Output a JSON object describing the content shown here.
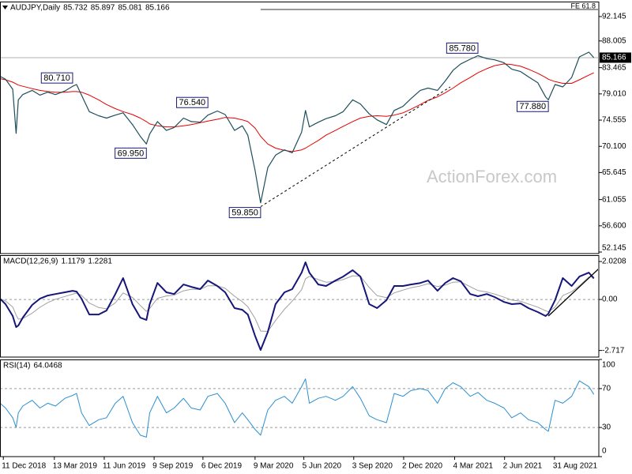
{
  "chart_data": [
    {
      "type": "line",
      "title": "AUDJPY,Daily",
      "readings": [
        85.732,
        85.897,
        85.081,
        85.166
      ],
      "watermark": "ActionForex.com",
      "xlim": [
        "2018-12-05",
        "2021-11-19"
      ],
      "x": [
        "2018-12-05",
        "2018-12-15",
        "2018-12-28",
        "2019-01-03",
        "2019-01-07",
        "2019-01-15",
        "2019-02-01",
        "2019-02-15",
        "2019-03-01",
        "2019-03-15",
        "2019-04-01",
        "2019-04-15",
        "2019-04-22",
        "2019-05-01",
        "2019-05-15",
        "2019-06-01",
        "2019-06-15",
        "2019-07-01",
        "2019-07-15",
        "2019-08-01",
        "2019-08-15",
        "2019-08-26",
        "2019-09-01",
        "2019-09-15",
        "2019-10-01",
        "2019-10-15",
        "2019-11-01",
        "2019-11-15",
        "2019-12-01",
        "2019-12-15",
        "2020-01-01",
        "2020-01-15",
        "2020-02-01",
        "2020-02-15",
        "2020-02-25",
        "2020-03-09",
        "2020-03-19",
        "2020-04-01",
        "2020-04-15",
        "2020-05-01",
        "2020-05-15",
        "2020-06-01",
        "2020-06-08",
        "2020-06-15",
        "2020-07-01",
        "2020-07-15",
        "2020-08-01",
        "2020-08-15",
        "2020-09-01",
        "2020-09-15",
        "2020-10-01",
        "2020-10-15",
        "2020-11-01",
        "2020-11-15",
        "2020-12-01",
        "2020-12-15",
        "2021-01-01",
        "2021-01-15",
        "2021-02-01",
        "2021-02-15",
        "2021-03-01",
        "2021-03-15",
        "2021-04-01",
        "2021-04-15",
        "2021-05-01",
        "2021-05-15",
        "2021-06-01",
        "2021-06-15",
        "2021-07-01",
        "2021-07-15",
        "2021-08-01",
        "2021-08-15",
        "2021-08-20",
        "2021-09-01",
        "2021-09-15",
        "2021-10-01",
        "2021-10-15",
        "2021-11-01",
        "2021-11-10"
      ],
      "ylim": [
        51.88,
        94.69
      ],
      "yticks": [
        92.145,
        88.005,
        83.465,
        {
          "value": 79.01,
          "label": "79.010"
        },
        74.555,
        {
          "value": 70.1,
          "label": "70.100"
        },
        65.645,
        61.055,
        {
          "value": 56.6,
          "label": "56.600"
        },
        52.145
      ],
      "series": [
        {
          "color": "#1d4f5c",
          "values": [
            82.0,
            81.5,
            79.8,
            72.3,
            78.0,
            78.9,
            79.6,
            78.8,
            79.3,
            78.9,
            79.5,
            80.3,
            80.6,
            78.8,
            76.0,
            75.3,
            74.9,
            75.4,
            75.8,
            73.8,
            71.8,
            70.5,
            72.2,
            74.3,
            72.8,
            73.3,
            74.9,
            74.3,
            74.2,
            75.4,
            76.1,
            75.5,
            72.8,
            73.6,
            72.0,
            66.0,
            60.5,
            66.5,
            68.6,
            69.5,
            69.0,
            72.5,
            76.2,
            73.4,
            74.2,
            74.8,
            75.3,
            76.0,
            78.0,
            77.3,
            75.6,
            74.6,
            73.8,
            76.2,
            76.9,
            78.2,
            79.6,
            80.0,
            79.6,
            81.2,
            83.0,
            84.1,
            84.9,
            85.5,
            85.0,
            84.8,
            84.3,
            83.2,
            82.8,
            81.9,
            80.9,
            78.5,
            78.0,
            80.6,
            80.2,
            81.8,
            85.3,
            86.1,
            85.166
          ]
        },
        {
          "color": "#e40000",
          "values": [
            81.6,
            81.4,
            81.0,
            80.7,
            80.5,
            80.3,
            79.9,
            79.6,
            79.4,
            79.3,
            79.3,
            79.4,
            79.4,
            79.3,
            78.8,
            78.0,
            77.2,
            76.5,
            76.0,
            75.5,
            74.9,
            74.3,
            73.9,
            73.6,
            73.4,
            73.4,
            73.6,
            73.8,
            74.1,
            74.4,
            74.7,
            75.0,
            74.9,
            74.6,
            74.3,
            73.2,
            71.8,
            70.5,
            69.8,
            69.4,
            69.2,
            69.5,
            69.8,
            70.2,
            71.1,
            72.0,
            72.8,
            73.5,
            74.3,
            74.9,
            75.2,
            75.3,
            75.2,
            75.4,
            75.8,
            76.4,
            77.2,
            77.9,
            78.5,
            79.2,
            80.0,
            80.9,
            81.8,
            82.6,
            83.3,
            83.8,
            84.1,
            84.0,
            83.7,
            83.2,
            82.5,
            81.8,
            81.5,
            81.1,
            80.8,
            80.8,
            81.4,
            82.2,
            82.6
          ]
        }
      ],
      "trendlines": [
        {
          "x": [
            "2020-03-19",
            "2021-02-24"
          ],
          "values": [
            59.85,
            80.19
          ],
          "color": "#000000"
        }
      ],
      "levels": [
        {
          "label": "FE 61.8",
          "value": 93.35,
          "start": "2020-03-19"
        }
      ],
      "annotations": [
        {
          "label": "80.710",
          "value": 80.71,
          "x": "2019-04-15"
        },
        {
          "label": "69.950",
          "value": 69.95,
          "x": "2019-08-26"
        },
        {
          "label": "76.540",
          "value": 76.54,
          "x": "2019-12-15"
        },
        {
          "label": "59.850",
          "value": 59.85,
          "x": "2020-03-19"
        },
        {
          "label": "85.780",
          "value": 85.78,
          "x": "2021-04-15"
        },
        {
          "label": "77.880",
          "value": 77.88,
          "x": "2021-08-20"
        }
      ]
    },
    {
      "type": "line",
      "title": "MACD(12,26,9)",
      "readings": [
        1.1179,
        1.2281
      ],
      "xlim": [
        "2018-12-05",
        "2021-11-19"
      ],
      "x": [
        "2018-12-05",
        "2018-12-15",
        "2018-12-28",
        "2019-01-03",
        "2019-01-07",
        "2019-01-15",
        "2019-02-01",
        "2019-02-15",
        "2019-03-01",
        "2019-03-15",
        "2019-04-01",
        "2019-04-15",
        "2019-04-22",
        "2019-05-01",
        "2019-05-15",
        "2019-06-01",
        "2019-06-15",
        "2019-07-01",
        "2019-07-15",
        "2019-08-01",
        "2019-08-15",
        "2019-08-26",
        "2019-09-01",
        "2019-09-15",
        "2019-10-01",
        "2019-10-15",
        "2019-11-01",
        "2019-11-15",
        "2019-12-01",
        "2019-12-15",
        "2020-01-01",
        "2020-01-15",
        "2020-02-01",
        "2020-02-15",
        "2020-02-25",
        "2020-03-09",
        "2020-03-19",
        "2020-04-01",
        "2020-04-15",
        "2020-05-01",
        "2020-05-15",
        "2020-06-01",
        "2020-06-08",
        "2020-06-15",
        "2020-07-01",
        "2020-07-15",
        "2020-08-01",
        "2020-08-15",
        "2020-09-01",
        "2020-09-15",
        "2020-10-01",
        "2020-10-15",
        "2020-11-01",
        "2020-11-15",
        "2020-12-01",
        "2020-12-15",
        "2021-01-01",
        "2021-01-15",
        "2021-02-01",
        "2021-02-15",
        "2021-03-01",
        "2021-03-15",
        "2021-04-01",
        "2021-04-15",
        "2021-05-01",
        "2021-05-15",
        "2021-06-01",
        "2021-06-15",
        "2021-07-01",
        "2021-07-15",
        "2021-08-01",
        "2021-08-15",
        "2021-08-20",
        "2021-09-01",
        "2021-09-15",
        "2021-10-01",
        "2021-10-15",
        "2021-11-01",
        "2021-11-10"
      ],
      "ylim": [
        -3.07,
        2.36
      ],
      "yticks": [
        2.0208,
        {
          "value": 0,
          "label": "0.00"
        },
        -2.717
      ],
      "guide_lines": [
        0
      ],
      "series": [
        {
          "color": "#16167a",
          "values": [
            0.04,
            -0.25,
            -0.88,
            -1.47,
            -1.39,
            -0.97,
            -0.29,
            0.04,
            0.21,
            0.29,
            0.38,
            0.46,
            0.42,
            0.04,
            -0.8,
            -0.8,
            -0.59,
            0.29,
            1.14,
            -0.25,
            -0.97,
            -1.09,
            -0.25,
            0.88,
            0.38,
            0.29,
            0.8,
            0.67,
            0.55,
            1.01,
            0.72,
            0.38,
            -0.46,
            -0.55,
            -0.8,
            -1.94,
            -2.69,
            -1.73,
            -0.25,
            0.38,
            0.55,
            1.43,
            1.98,
            1.43,
            0.8,
            0.72,
            1.01,
            1.22,
            1.56,
            1.22,
            -0.25,
            -0.46,
            -0.04,
            0.72,
            0.72,
            0.8,
            0.88,
            1.01,
            0.46,
            0.88,
            1.14,
            0.97,
            0.29,
            0.17,
            0.29,
            0.13,
            -0.13,
            -0.25,
            -0.21,
            -0.46,
            -0.67,
            -0.88,
            -0.76,
            -0.04,
            1.14,
            0.72,
            1.22,
            1.43,
            1.1179
          ]
        },
        {
          "color": "#a0a0a0",
          "values": [
            0.04,
            -0.08,
            -0.4,
            -0.83,
            -1.05,
            -1.02,
            -0.73,
            -0.42,
            -0.17,
            0.01,
            0.16,
            0.28,
            0.34,
            0.22,
            -0.19,
            -0.43,
            -0.5,
            -0.18,
            0.35,
            0.11,
            -0.32,
            -0.63,
            -0.48,
            0.06,
            0.19,
            0.23,
            0.46,
            0.54,
            0.54,
            0.73,
            0.73,
            0.59,
            0.17,
            -0.12,
            -0.39,
            -1.01,
            -1.68,
            -1.7,
            -1.12,
            -0.52,
            -0.09,
            0.52,
            1.1,
            1.23,
            1.06,
            0.92,
            0.96,
            1.06,
            1.26,
            1.24,
            0.64,
            0.2,
            0.1,
            0.35,
            0.5,
            0.62,
            0.72,
            0.84,
            0.69,
            0.77,
            0.92,
            0.94,
            0.68,
            0.48,
            0.4,
            0.29,
            0.12,
            -0.03,
            -0.1,
            -0.24,
            -0.41,
            -0.6,
            -0.66,
            -0.41,
            0.21,
            0.41,
            0.73,
            1.2,
            1.2281
          ]
        }
      ],
      "trendlines": [
        {
          "x": [
            "2021-08-20",
            "2021-11-19"
          ],
          "values": [
            -0.88,
            1.64
          ],
          "color": "#000000"
        }
      ]
    },
    {
      "type": "line",
      "title": "RSI(14)",
      "readings": [
        64.0468
      ],
      "xlim": [
        "2018-12-05",
        "2021-11-19"
      ],
      "x": [
        "2018-12-05",
        "2018-12-15",
        "2018-12-28",
        "2019-01-03",
        "2019-01-07",
        "2019-01-15",
        "2019-02-01",
        "2019-02-15",
        "2019-03-01",
        "2019-03-15",
        "2019-04-01",
        "2019-04-15",
        "2019-04-22",
        "2019-05-01",
        "2019-05-15",
        "2019-06-01",
        "2019-06-15",
        "2019-07-01",
        "2019-07-15",
        "2019-08-01",
        "2019-08-15",
        "2019-08-26",
        "2019-09-01",
        "2019-09-15",
        "2019-10-01",
        "2019-10-15",
        "2019-11-01",
        "2019-11-15",
        "2019-12-01",
        "2019-12-15",
        "2020-01-01",
        "2020-01-15",
        "2020-02-01",
        "2020-02-15",
        "2020-02-25",
        "2020-03-09",
        "2020-03-19",
        "2020-04-01",
        "2020-04-15",
        "2020-05-01",
        "2020-05-15",
        "2020-06-01",
        "2020-06-08",
        "2020-06-15",
        "2020-07-01",
        "2020-07-15",
        "2020-08-01",
        "2020-08-15",
        "2020-09-01",
        "2020-09-15",
        "2020-10-01",
        "2020-10-15",
        "2020-11-01",
        "2020-11-15",
        "2020-12-01",
        "2020-12-15",
        "2021-01-01",
        "2021-01-15",
        "2021-02-01",
        "2021-02-15",
        "2021-03-01",
        "2021-03-15",
        "2021-04-01",
        "2021-04-15",
        "2021-05-01",
        "2021-05-15",
        "2021-06-01",
        "2021-06-15",
        "2021-07-01",
        "2021-07-15",
        "2021-08-01",
        "2021-08-15",
        "2021-08-20",
        "2021-09-01",
        "2021-09-15",
        "2021-10-01",
        "2021-10-15",
        "2021-11-01",
        "2021-11-10"
      ],
      "ylim": [
        0,
        100
      ],
      "yticks": [
        100,
        70,
        30,
        0
      ],
      "guide_lines": [
        70,
        30
      ],
      "series": [
        {
          "color": "#2a8fd0",
          "values": [
            55,
            50,
            40,
            30,
            45,
            52,
            58,
            50,
            55,
            52,
            60,
            63,
            65,
            45,
            32,
            38,
            40,
            55,
            62,
            35,
            22,
            20,
            45,
            62,
            45,
            50,
            60,
            50,
            48,
            62,
            65,
            55,
            35,
            45,
            38,
            28,
            22,
            48,
            58,
            62,
            55,
            72,
            80,
            55,
            60,
            62,
            58,
            62,
            72,
            60,
            42,
            38,
            35,
            65,
            62,
            68,
            70,
            68,
            55,
            70,
            76,
            72,
            62,
            66,
            58,
            55,
            50,
            40,
            45,
            38,
            35,
            28,
            26,
            58,
            55,
            62,
            78,
            72,
            64.0468
          ]
        }
      ],
      "xticks": [
        {
          "value": "2018-12-11",
          "label": "11 Dec 2018"
        },
        {
          "value": "2019-03-13",
          "label": "13 Mar 2019"
        },
        {
          "value": "2019-06-11",
          "label": "11 Jun 2019"
        },
        {
          "value": "2019-09-09",
          "label": "9 Sep 2019"
        },
        {
          "value": "2019-12-06",
          "label": "6 Dec 2019"
        },
        {
          "value": "2020-03-09",
          "label": "9 Mar 2020"
        },
        {
          "value": "2020-06-05",
          "label": "5 Jun 2020"
        },
        {
          "value": "2020-09-03",
          "label": "3 Sep 2020"
        },
        {
          "value": "2020-12-02",
          "label": "2 Dec 2020"
        },
        {
          "value": "2021-03-04",
          "label": "4 Mar 2021"
        },
        {
          "value": "2021-06-02",
          "label": "2 Jun 2021"
        },
        {
          "value": "2021-08-31",
          "label": "31 Aug 2021"
        }
      ]
    }
  ]
}
